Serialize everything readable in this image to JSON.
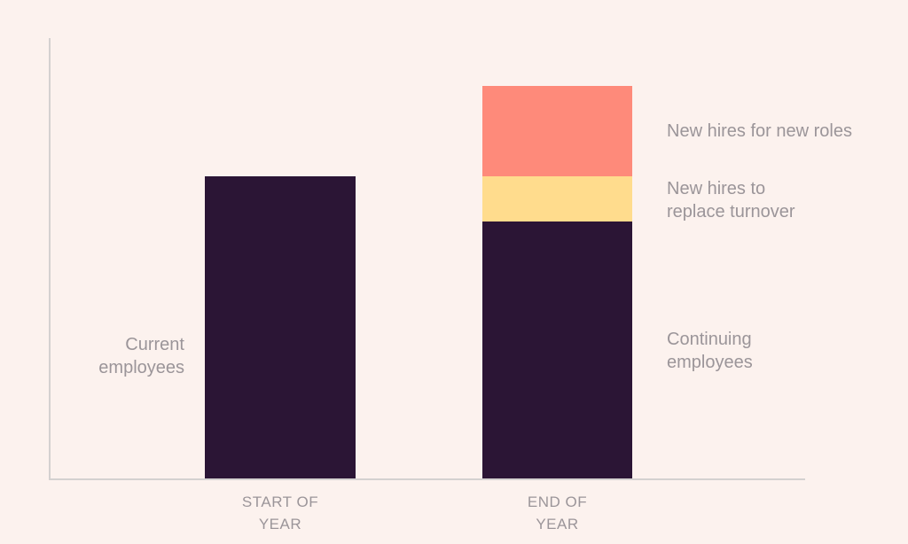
{
  "colors": {
    "background": "#fcf2ee",
    "axis_line": "#d4d1d0",
    "label_text": "#9b9599",
    "bar_dark": "#2b1535",
    "bar_yellow": "#ffdc8d",
    "bar_salmon": "#fe8a7a"
  },
  "annotations": {
    "current_employees": {
      "line1": "Current",
      "line2": "employees"
    },
    "new_hires_new_roles": {
      "line1": "New hires for new roles"
    },
    "new_hires_replace": {
      "line1": "New hires to",
      "line2": "replace turnover"
    },
    "continuing_employees": {
      "line1": "Continuing",
      "line2": "employees"
    }
  },
  "x_axis": {
    "labels": [
      {
        "line1": "START OF",
        "line2": "YEAR"
      },
      {
        "line1": "END OF",
        "line2": "YEAR"
      }
    ]
  },
  "chart_data": {
    "type": "bar",
    "subtype": "stacked",
    "title": "",
    "categories": [
      "START OF YEAR",
      "END OF YEAR"
    ],
    "series": [
      {
        "name": "Current / Continuing employees",
        "color": "#2b1535",
        "values": [
          100,
          85
        ]
      },
      {
        "name": "New hires to replace turnover",
        "color": "#ffdc8d",
        "values": [
          0,
          15
        ]
      },
      {
        "name": "New hires for new roles",
        "color": "#fe8a7a",
        "values": [
          0,
          30
        ]
      }
    ],
    "value_units": "relative headcount, start of year = 100 (estimated from bar heights)",
    "ylim": [
      0,
      146
    ],
    "grid": false,
    "legend": "none; segments labeled directly beside bars",
    "axis_ticks_visible": false
  }
}
